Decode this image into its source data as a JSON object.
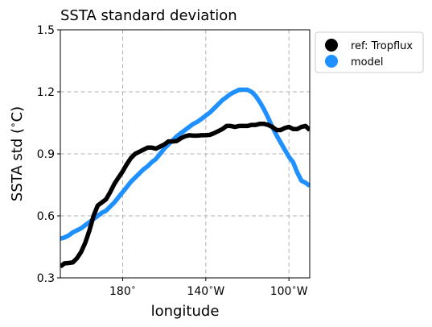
{
  "chart_data": {
    "type": "line",
    "title": "SSTA standard deviation",
    "xlabel": "longitude",
    "ylabel": "SSTA std ($^\\circ$C)",
    "ylabel_parts": {
      "main": "SSTA std (",
      "sup": "∘",
      "unit": "C)"
    },
    "xlim": [
      150,
      270
    ],
    "ylim": [
      0.3,
      1.5
    ],
    "yticks": [
      0.3,
      0.6,
      0.9,
      1.2,
      1.5
    ],
    "ytick_labels": [
      "0.3",
      "0.6",
      "0.9",
      "1.2",
      "1.5"
    ],
    "xticks": [
      180,
      220,
      260
    ],
    "xtick_labels": [
      {
        "num": "180",
        "deg": "∘",
        "dir": ""
      },
      {
        "num": "140",
        "deg": "∘",
        "dir": "W"
      },
      {
        "num": "100",
        "deg": "∘",
        "dir": "W"
      }
    ],
    "grid": true,
    "legend": {
      "placement": "outside-upper-right"
    },
    "series": [
      {
        "name": "ref: Tropflux",
        "color": "#000000",
        "x": [
          150,
          152,
          154,
          156,
          158,
          160,
          162,
          164,
          166,
          168,
          170,
          172,
          174,
          176,
          178,
          180,
          182,
          184,
          186,
          188,
          190,
          192,
          194,
          196,
          198,
          200,
          202,
          204,
          206,
          208,
          210,
          212,
          214,
          216,
          218,
          220,
          222,
          224,
          226,
          228,
          230,
          232,
          234,
          236,
          238,
          240,
          242,
          244,
          246,
          248,
          250,
          252,
          254,
          256,
          258,
          260,
          262,
          264,
          266,
          268,
          270
        ],
        "y": [
          0.355,
          0.37,
          0.372,
          0.375,
          0.395,
          0.425,
          0.47,
          0.53,
          0.6,
          0.65,
          0.665,
          0.68,
          0.715,
          0.755,
          0.785,
          0.815,
          0.85,
          0.88,
          0.9,
          0.91,
          0.92,
          0.93,
          0.93,
          0.925,
          0.935,
          0.945,
          0.96,
          0.96,
          0.962,
          0.975,
          0.985,
          0.99,
          0.988,
          0.988,
          0.99,
          0.99,
          0.992,
          1.0,
          1.01,
          1.02,
          1.035,
          1.035,
          1.03,
          1.035,
          1.035,
          1.035,
          1.04,
          1.04,
          1.045,
          1.045,
          1.04,
          1.03,
          1.015,
          1.015,
          1.025,
          1.03,
          1.02,
          1.02,
          1.03,
          1.035,
          1.015
        ]
      },
      {
        "name": "model",
        "color": "#1e90ff",
        "x": [
          150,
          152,
          154,
          156,
          158,
          160,
          162,
          164,
          166,
          168,
          170,
          172,
          174,
          176,
          178,
          180,
          182,
          184,
          186,
          188,
          190,
          192,
          194,
          196,
          198,
          200,
          202,
          204,
          206,
          208,
          210,
          212,
          214,
          216,
          218,
          220,
          222,
          224,
          226,
          228,
          230,
          232,
          234,
          236,
          238,
          240,
          242,
          244,
          246,
          248,
          250,
          252,
          254,
          256,
          258,
          260,
          262,
          264,
          266,
          268,
          270
        ],
        "y": [
          0.49,
          0.495,
          0.505,
          0.52,
          0.53,
          0.54,
          0.555,
          0.57,
          0.585,
          0.6,
          0.615,
          0.625,
          0.645,
          0.665,
          0.69,
          0.715,
          0.74,
          0.765,
          0.785,
          0.805,
          0.825,
          0.84,
          0.86,
          0.875,
          0.9,
          0.925,
          0.945,
          0.965,
          0.985,
          1.0,
          1.015,
          1.03,
          1.045,
          1.055,
          1.07,
          1.085,
          1.1,
          1.12,
          1.14,
          1.16,
          1.175,
          1.19,
          1.2,
          1.21,
          1.21,
          1.21,
          1.2,
          1.18,
          1.15,
          1.115,
          1.075,
          1.03,
          0.99,
          0.955,
          0.92,
          0.885,
          0.86,
          0.81,
          0.77,
          0.76,
          0.745
        ]
      }
    ]
  }
}
